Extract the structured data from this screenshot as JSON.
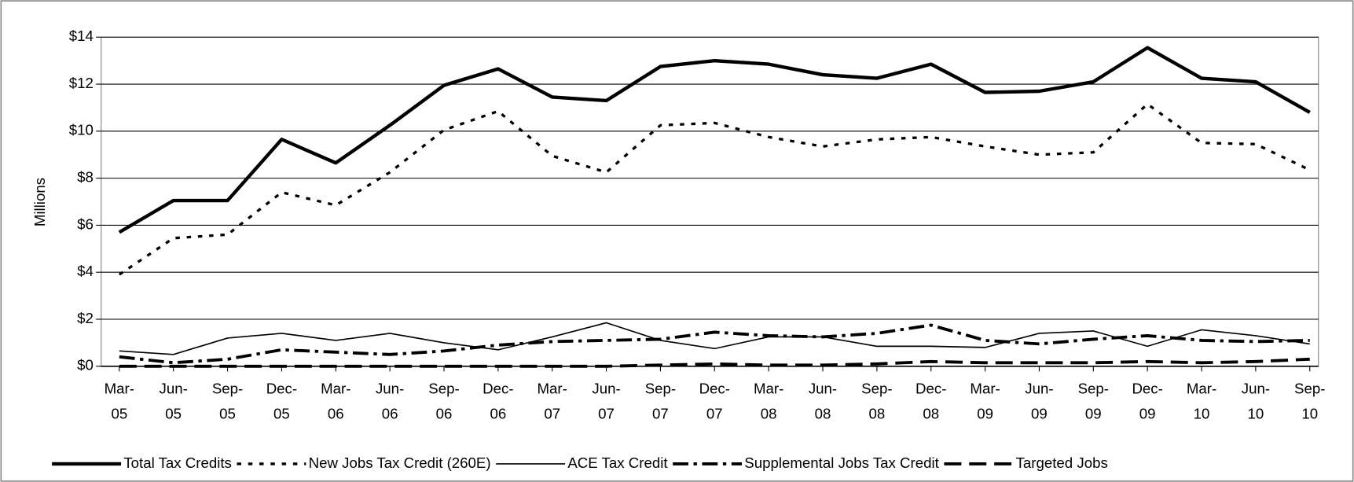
{
  "chart_data": {
    "type": "line",
    "y_label": "Millions",
    "categories": [
      "Mar-05",
      "Jun-05",
      "Sep-05",
      "Dec-05",
      "Mar-06",
      "Jun-06",
      "Sep-06",
      "Dec-06",
      "Mar-07",
      "Jun-07",
      "Sep-07",
      "Dec-07",
      "Mar-08",
      "Jun-08",
      "Sep-08",
      "Dec-08",
      "Mar-09",
      "Jun-09",
      "Sep-09",
      "Dec-09",
      "Mar-10",
      "Jun-10",
      "Sep-10"
    ],
    "series": [
      {
        "name": "Total Tax Credits",
        "color": "#000000",
        "width": 4,
        "dash": "none",
        "values": [
          5.7,
          7.05,
          7.05,
          9.65,
          8.65,
          10.25,
          11.95,
          12.65,
          11.45,
          11.3,
          12.75,
          13.0,
          12.85,
          12.4,
          12.25,
          12.85,
          11.65,
          11.7,
          12.1,
          13.55,
          12.25,
          12.1,
          10.8
        ]
      },
      {
        "name": "New Jobs Tax Credit (260E)",
        "color": "#000000",
        "width": 3,
        "dash": "5 8",
        "values": [
          3.9,
          5.45,
          5.6,
          7.4,
          6.85,
          8.25,
          10.05,
          10.85,
          8.95,
          8.25,
          10.25,
          10.35,
          9.75,
          9.35,
          9.65,
          9.75,
          9.35,
          9.0,
          9.1,
          11.15,
          9.5,
          9.45,
          8.35
        ]
      },
      {
        "name": "ACE Tax Credit",
        "color": "#000000",
        "width": 1.5,
        "dash": "none",
        "values": [
          0.65,
          0.5,
          1.2,
          1.4,
          1.1,
          1.4,
          1.0,
          0.7,
          1.25,
          1.85,
          1.1,
          0.75,
          1.25,
          1.25,
          0.85,
          0.85,
          0.8,
          1.4,
          1.5,
          0.85,
          1.55,
          1.3,
          0.95
        ]
      },
      {
        "name": "Supplemental Jobs Tax Credit",
        "color": "#000000",
        "width": 3.5,
        "dash": "18 6 4 6",
        "values": [
          0.4,
          0.15,
          0.3,
          0.7,
          0.6,
          0.5,
          0.65,
          0.9,
          1.05,
          1.1,
          1.15,
          1.45,
          1.3,
          1.25,
          1.4,
          1.75,
          1.1,
          0.95,
          1.15,
          1.3,
          1.1,
          1.05,
          1.1
        ]
      },
      {
        "name": "Targeted Jobs",
        "color": "#000000",
        "width": 3.5,
        "dash": "20 9",
        "values": [
          0,
          0,
          0,
          0,
          0,
          0,
          0,
          0,
          0,
          0,
          0.05,
          0.1,
          0.05,
          0.05,
          0.1,
          0.2,
          0.15,
          0.15,
          0.15,
          0.2,
          0.15,
          0.2,
          0.3
        ]
      }
    ],
    "ylim": [
      0,
      14
    ],
    "yticks": [
      {
        "value": 0,
        "label": "$0"
      },
      {
        "value": 2,
        "label": "$2"
      },
      {
        "value": 4,
        "label": "$4"
      },
      {
        "value": 6,
        "label": "$6"
      },
      {
        "value": 8,
        "label": "$8"
      },
      {
        "value": 10,
        "label": "$10"
      },
      {
        "value": 12,
        "label": "$12"
      },
      {
        "value": 14,
        "label": "$14"
      }
    ],
    "grid": true,
    "legend": "bottom"
  }
}
